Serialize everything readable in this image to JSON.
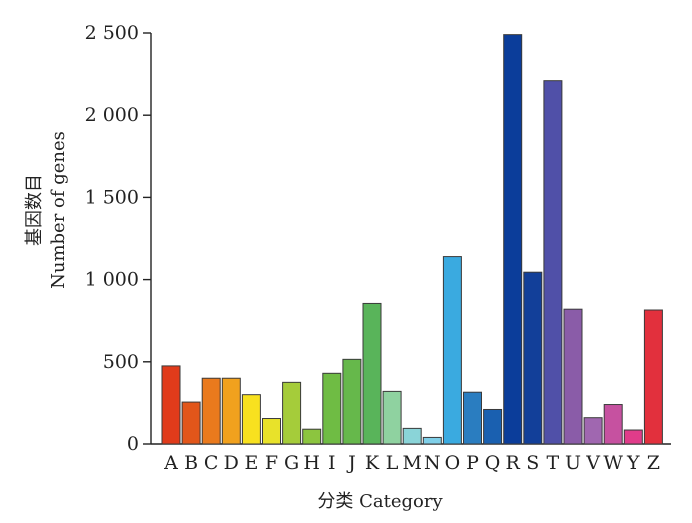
{
  "chart_data": {
    "type": "bar",
    "title": "",
    "xlabel": "分类 Category",
    "ylabel_cn": "基因数目",
    "ylabel_en": "Number of genes",
    "ylim": [
      0,
      2500
    ],
    "yticks": [
      0,
      500,
      1000,
      1500,
      2000,
      2500
    ],
    "ytick_labels": [
      "0",
      "500",
      "1 000",
      "1 500",
      "2 000",
      "2 500"
    ],
    "grid": false,
    "categories": [
      "A",
      "B",
      "C",
      "D",
      "E",
      "F",
      "G",
      "H",
      "I",
      "J",
      "K",
      "L",
      "M",
      "N",
      "O",
      "P",
      "Q",
      "R",
      "S",
      "T",
      "U",
      "V",
      "W",
      "Y",
      "Z"
    ],
    "values": [
      475,
      255,
      400,
      400,
      300,
      155,
      375,
      90,
      430,
      515,
      855,
      320,
      95,
      40,
      1140,
      315,
      210,
      2490,
      1045,
      2210,
      820,
      160,
      240,
      85,
      815
    ],
    "colors": [
      "#e03b1b",
      "#e2561a",
      "#ea7a1d",
      "#f1a11e",
      "#f8e11f",
      "#e8e22a",
      "#a5cc3a",
      "#8cc53f",
      "#6fbc44",
      "#66b84b",
      "#59b45a",
      "#8fd2a0",
      "#8ad4d8",
      "#7fcfe8",
      "#3aaae0",
      "#2a7dc0",
      "#1a60b0",
      "#0b3d9a",
      "#123f99",
      "#5050a8",
      "#8a5ca8",
      "#a067b0",
      "#c651a0",
      "#e03c8a",
      "#e2303d"
    ]
  }
}
